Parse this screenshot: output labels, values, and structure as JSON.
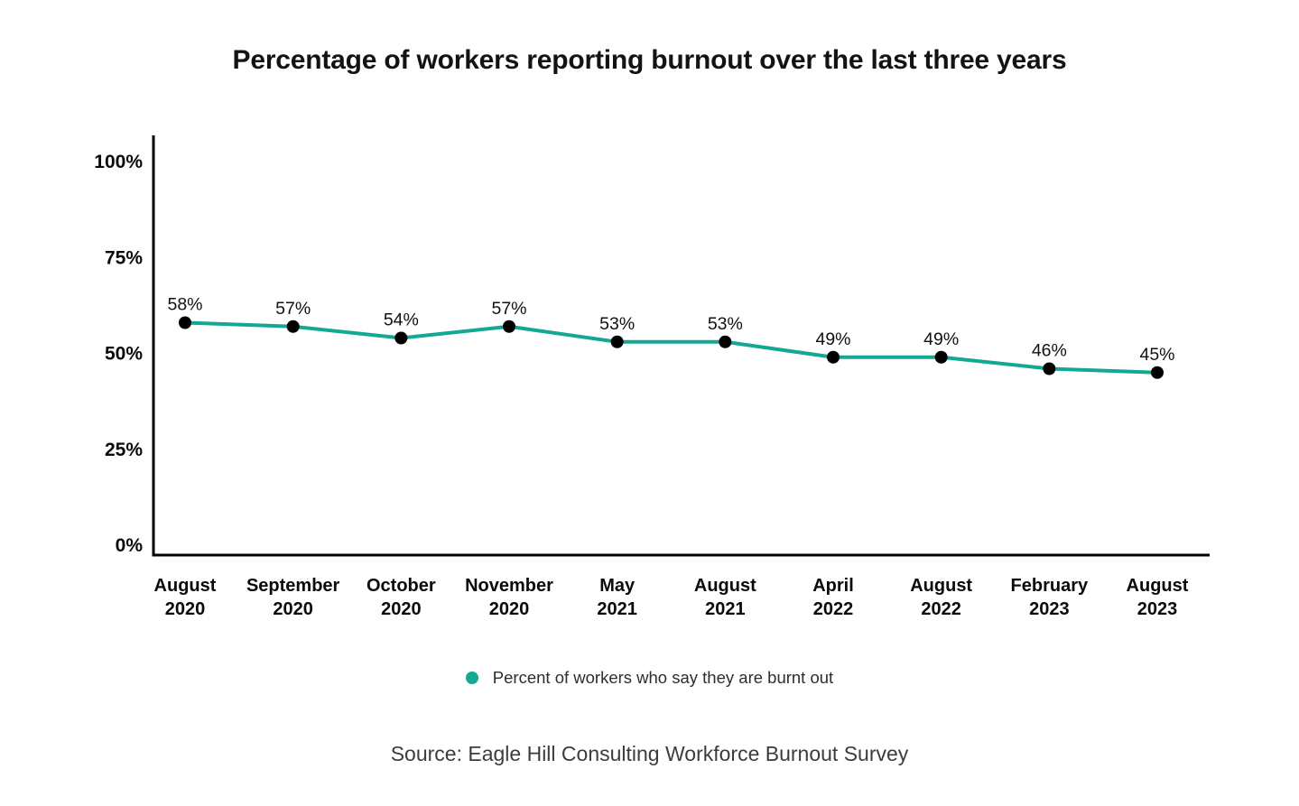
{
  "page": {
    "background": "#ffffff",
    "title": "Percentage of workers reporting burnout over the last three years",
    "source": "Source: Eagle Hill Consulting Workforce Burnout Survey"
  },
  "legend": {
    "marker": "circle",
    "marker_color": "#13a893",
    "label": "Percent of workers who say they are burnt out"
  },
  "chart_data": {
    "type": "line",
    "title": "Percentage of workers reporting burnout over the last three years",
    "categories": [
      "August 2020",
      "September 2020",
      "October 2020",
      "November 2020",
      "May 2021",
      "August 2021",
      "April 2022",
      "August 2022",
      "February 2023",
      "August 2023"
    ],
    "values": [
      58,
      57,
      54,
      57,
      53,
      53,
      49,
      49,
      46,
      45
    ],
    "point_labels": [
      "58%",
      "57%",
      "54%",
      "57%",
      "53%",
      "53%",
      "49%",
      "49%",
      "46%",
      "45%"
    ],
    "series_name": "Percent of workers who say they are burnt out",
    "xlabel": "",
    "ylabel": "",
    "ylim": [
      0,
      100
    ],
    "yticks": [
      {
        "label": "0%",
        "value": 0
      },
      {
        "label": "25%",
        "value": 25
      },
      {
        "label": "50%",
        "value": 50
      },
      {
        "label": "75%",
        "value": 75
      },
      {
        "label": "100%",
        "value": 100
      }
    ],
    "grid": false,
    "legend_position": "bottom",
    "line_color": "#13a893",
    "point_color": "#000000",
    "axis_color": "#000000"
  }
}
